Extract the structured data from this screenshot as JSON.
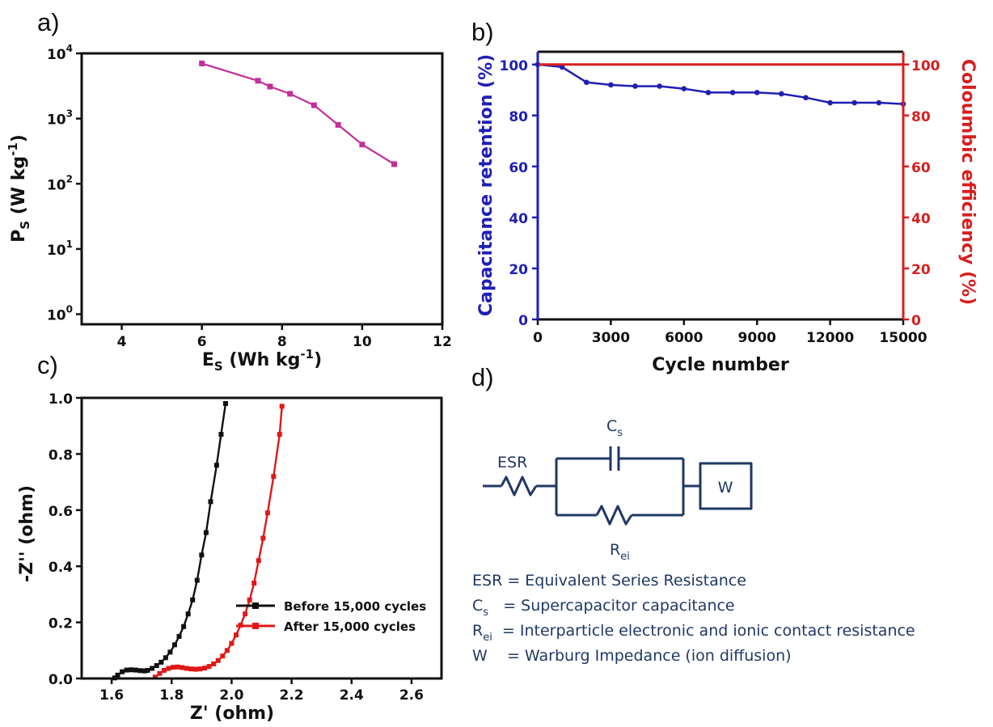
{
  "panels": {
    "a": "a)",
    "b": "b)",
    "c": "c)",
    "d": "d)"
  },
  "chart_data": [
    {
      "id": "a",
      "type": "line",
      "xlabel": {
        "main": "E",
        "sub": "S",
        "rest": " (Wh kg",
        "sup": "-1",
        "end": ")"
      },
      "ylabel": {
        "main": "P",
        "sub": "S",
        "rest": " (W kg",
        "sup": "-1",
        "end": ")"
      },
      "x_ticks": [
        "4",
        "6",
        "8",
        "10",
        "12"
      ],
      "y_ticks": [
        {
          "base": "10",
          "exp": "0"
        },
        {
          "base": "10",
          "exp": "1"
        },
        {
          "base": "10",
          "exp": "2"
        },
        {
          "base": "10",
          "exp": "3"
        },
        {
          "base": "10",
          "exp": "4"
        }
      ],
      "xlim": [
        3,
        12
      ],
      "ylim": [
        0.7,
        10000
      ],
      "y_scale": "log",
      "color": "#c2309a",
      "x": [
        6.0,
        7.4,
        7.7,
        8.2,
        8.8,
        9.4,
        10.0,
        10.8
      ],
      "y": [
        7000,
        3800,
        3100,
        2400,
        1600,
        800,
        400,
        200
      ]
    },
    {
      "id": "b",
      "type": "line",
      "xlabel": "Cycle number",
      "ylabel_left": "Capacitance retention (%)",
      "ylabel_right": "Coloumbic efficiency (%)",
      "x_ticks": [
        "0",
        "3000",
        "6000",
        "9000",
        "12000",
        "15000"
      ],
      "y_ticks": [
        "0",
        "20",
        "40",
        "60",
        "80",
        "100"
      ],
      "xlim": [
        0,
        15000
      ],
      "ylim": [
        0,
        105
      ],
      "series": [
        {
          "color": "#1f1fb4",
          "axis": "left",
          "x": [
            0,
            1000,
            2000,
            3000,
            4000,
            5000,
            6000,
            7000,
            8000,
            9000,
            10000,
            11000,
            12000,
            13000,
            14000,
            15000
          ],
          "y": [
            100,
            99,
            93,
            92,
            91.5,
            91.5,
            90.5,
            89,
            89,
            89,
            88.5,
            87,
            85,
            85,
            85,
            84.5
          ]
        },
        {
          "color": "#d81e1e",
          "axis": "right",
          "x": [
            0,
            15000
          ],
          "y": [
            100,
            100
          ]
        }
      ]
    },
    {
      "id": "c",
      "type": "line",
      "xlabel": "Z' (ohm)",
      "ylabel": "-Z'' (ohm)",
      "x_ticks": [
        "1.6",
        "1.8",
        "2.0",
        "2.2",
        "2.4",
        "2.6"
      ],
      "y_ticks": [
        "0.0",
        "0.2",
        "0.4",
        "0.6",
        "0.8",
        "1.0"
      ],
      "xlim": [
        1.5,
        2.7
      ],
      "ylim": [
        0,
        1.0
      ],
      "series": [
        {
          "name": "Before 15,000 cycles",
          "color": "#111111",
          "x": [
            1.61,
            1.62,
            1.635,
            1.65,
            1.665,
            1.68,
            1.695,
            1.71,
            1.72,
            1.735,
            1.75,
            1.765,
            1.78,
            1.795,
            1.81,
            1.825,
            1.84,
            1.855,
            1.87,
            1.885,
            1.9,
            1.915,
            1.93,
            1.95,
            1.965,
            1.98
          ],
          "y": [
            0.002,
            0.012,
            0.024,
            0.03,
            0.031,
            0.03,
            0.028,
            0.027,
            0.029,
            0.036,
            0.046,
            0.058,
            0.074,
            0.094,
            0.12,
            0.15,
            0.185,
            0.23,
            0.28,
            0.35,
            0.44,
            0.52,
            0.63,
            0.76,
            0.87,
            0.98
          ]
        },
        {
          "name": "After 15,000 cycles",
          "color": "#e01818",
          "x": [
            1.745,
            1.76,
            1.775,
            1.79,
            1.805,
            1.82,
            1.835,
            1.85,
            1.865,
            1.88,
            1.895,
            1.91,
            1.925,
            1.94,
            1.955,
            1.97,
            1.985,
            2.0,
            2.015,
            2.03,
            2.045,
            2.06,
            2.075,
            2.09,
            2.105,
            2.12,
            2.14,
            2.16,
            2.168
          ],
          "y": [
            0.005,
            0.018,
            0.029,
            0.036,
            0.04,
            0.041,
            0.039,
            0.036,
            0.034,
            0.033,
            0.034,
            0.037,
            0.043,
            0.052,
            0.064,
            0.08,
            0.1,
            0.125,
            0.155,
            0.19,
            0.23,
            0.28,
            0.34,
            0.42,
            0.5,
            0.59,
            0.72,
            0.87,
            0.97
          ]
        }
      ]
    }
  ],
  "circuit": {
    "esr_label": "ESR",
    "cs_label": {
      "main": "C",
      "sub": "s"
    },
    "rei_label": {
      "main": "R",
      "sub": "ei"
    },
    "w_label": "W",
    "color": "#1f3864",
    "legend": [
      {
        "main": "ESR",
        "sub": "",
        "gap": " ",
        "text": "= Equivalent Series Resistance"
      },
      {
        "main": "C",
        "sub": "s",
        "gap": "   ",
        "text": "=  Supercapacitor capacitance"
      },
      {
        "main": "R",
        "sub": "ei",
        "gap": "  ",
        "text": "=  Interparticle electronic and ionic contact resistance"
      },
      {
        "main": "W",
        "sub": "",
        "gap": "    ",
        "text": "=  Warburg Impedance (ion diffusion)"
      }
    ]
  }
}
